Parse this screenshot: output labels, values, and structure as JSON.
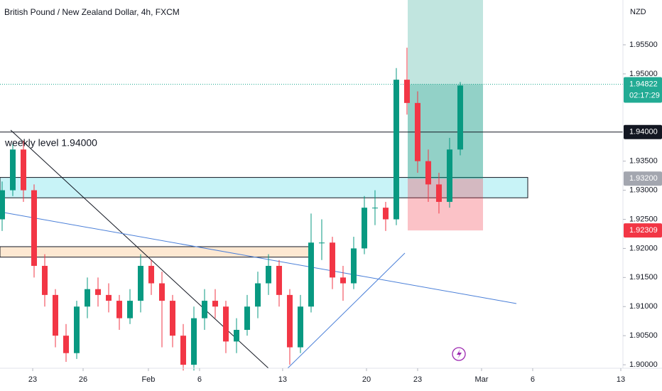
{
  "chart_data": {
    "type": "candlestick",
    "title": "British Pound / New Zealand Dollar, 4h, FXCM",
    "currency": "NZD",
    "annotation": "weekly level 1.94000",
    "ylim": [
      1.8994,
      1.9627
    ],
    "xlim": [
      -0.2,
      58.27
    ],
    "yticks": [
      {
        "value": 1.9,
        "label": "1.90000"
      },
      {
        "value": 1.905,
        "label": "1.90500"
      },
      {
        "value": 1.91,
        "label": "1.91000"
      },
      {
        "value": 1.915,
        "label": "1.91500"
      },
      {
        "value": 1.92,
        "label": "1.92000"
      },
      {
        "value": 1.925,
        "label": "1.92500"
      },
      {
        "value": 1.93,
        "label": "1.93000"
      },
      {
        "value": 1.935,
        "label": "1.93500"
      },
      {
        "value": 1.95,
        "label": "1.95000"
      },
      {
        "value": 1.955,
        "label": "1.95500"
      }
    ],
    "xticks": [
      {
        "value": 2.87,
        "label": "23"
      },
      {
        "value": 7.6,
        "label": "26"
      },
      {
        "value": 13.73,
        "label": "Feb"
      },
      {
        "value": 18.53,
        "label": "6"
      },
      {
        "value": 26.33,
        "label": "13"
      },
      {
        "value": 34.2,
        "label": "20"
      },
      {
        "value": 39,
        "label": "23"
      },
      {
        "value": 45,
        "label": "Mar"
      },
      {
        "value": 49.8,
        "label": "6"
      },
      {
        "value": 58.07,
        "label": "13"
      }
    ],
    "up_color": "#089981",
    "down_color": "#f23645",
    "open": [
      1.925,
      1.93,
      1.937,
      1.93,
      1.917,
      1.912,
      1.905,
      1.902,
      1.91,
      1.913,
      1.912,
      1.911,
      1.908,
      1.911,
      1.917,
      1.914,
      1.911,
      1.905,
      1.9,
      1.908,
      1.911,
      1.91,
      1.904,
      1.906,
      1.91,
      1.914,
      1.917,
      1.912,
      1.903,
      1.91,
      1.921,
      1.921,
      1.915,
      1.914,
      1.92,
      1.927,
      1.927,
      1.925,
      1.949,
      1.945,
      1.935,
      1.931,
      1.928,
      1.937
    ],
    "high": [
      1.9315,
      1.938,
      1.9385,
      1.931,
      1.919,
      1.913,
      1.907,
      1.911,
      1.915,
      1.915,
      1.914,
      1.912,
      1.913,
      1.919,
      1.918,
      1.916,
      1.912,
      1.907,
      1.91,
      1.913,
      1.913,
      1.911,
      1.908,
      1.912,
      1.916,
      1.919,
      1.918,
      1.913,
      1.912,
      1.926,
      1.925,
      1.922,
      1.917,
      1.922,
      1.929,
      1.93,
      1.928,
      1.951,
      1.9545,
      1.947,
      1.937,
      1.933,
      1.939,
      1.9486
    ],
    "low": [
      1.923,
      1.929,
      1.928,
      1.915,
      1.91,
      1.903,
      1.9005,
      1.901,
      1.908,
      1.91,
      1.909,
      1.906,
      1.907,
      1.909,
      1.912,
      1.903,
      1.903,
      1.899,
      1.899,
      1.906,
      1.908,
      1.902,
      1.902,
      1.905,
      1.908,
      1.912,
      1.91,
      1.9,
      1.902,
      1.909,
      1.918,
      1.913,
      1.911,
      1.913,
      1.919,
      1.924,
      1.923,
      1.924,
      1.943,
      1.933,
      1.928,
      1.926,
      1.927,
      1.936
    ],
    "close": [
      1.93,
      1.937,
      1.93,
      1.917,
      1.912,
      1.905,
      1.902,
      1.91,
      1.913,
      1.912,
      1.911,
      1.908,
      1.911,
      1.917,
      1.914,
      1.911,
      1.905,
      1.9,
      1.908,
      1.911,
      1.91,
      1.904,
      1.906,
      1.91,
      1.914,
      1.917,
      1.912,
      1.903,
      1.91,
      1.921,
      1.921,
      1.915,
      1.914,
      1.92,
      1.927,
      1.927,
      1.925,
      1.949,
      1.945,
      1.935,
      1.931,
      1.928,
      1.937,
      1.948
    ],
    "zones": [
      {
        "low": 1.9287,
        "high": 1.9322,
        "color": "#c8f3f7"
      },
      {
        "low": 1.9185,
        "high": 1.9203,
        "color": "#fde8d2"
      }
    ],
    "markers": [
      {
        "value": 1.94822,
        "label": "1.94822",
        "time": "02:17:29",
        "color": "#22ab94"
      },
      {
        "value": 1.94,
        "label": "1.94000",
        "color": "#131722"
      },
      {
        "value": 1.932,
        "label": "1.93200",
        "color": "#a3a6af"
      },
      {
        "value": 1.92309,
        "label": "1.92309",
        "color": "#f23645"
      }
    ]
  }
}
